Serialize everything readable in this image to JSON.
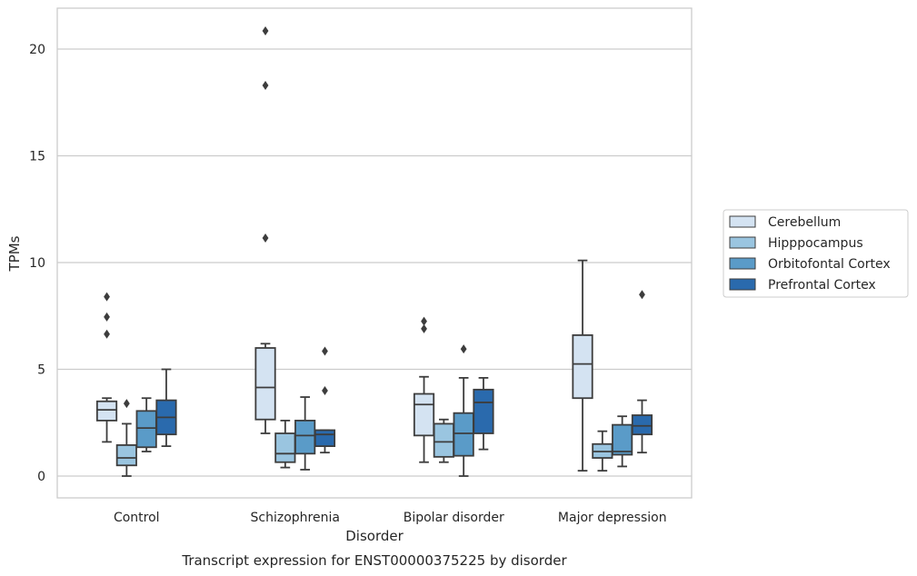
{
  "caption": "Transcript expression for ENST00000375225 by disorder",
  "chart_data": {
    "type": "boxplot",
    "title": "",
    "xlabel": "Disorder",
    "ylabel": "TPMs",
    "ylim": [
      -1,
      21.9
    ],
    "yticks": [
      0,
      5,
      10,
      15,
      20
    ],
    "grid": "horizontal",
    "legend_position": "right",
    "categories": [
      "Control",
      "Schizophrenia",
      "Bipolar disorder",
      "Major depression"
    ],
    "series": [
      {
        "name": "Cerebellum",
        "color": "#d4e3f2",
        "boxes": [
          {
            "whisker_low": 1.6,
            "q1": 2.6,
            "median": 3.1,
            "q3": 3.5,
            "whisker_high": 3.65,
            "outliers": [
              8.4,
              7.45,
              6.65
            ]
          },
          {
            "whisker_low": 2.0,
            "q1": 2.65,
            "median": 4.15,
            "q3": 6.0,
            "whisker_high": 6.2,
            "outliers": [
              20.85,
              18.3,
              11.15
            ]
          },
          {
            "whisker_low": 0.65,
            "q1": 1.9,
            "median": 3.35,
            "q3": 3.85,
            "whisker_high": 4.65,
            "outliers": [
              7.25,
              6.9
            ]
          },
          {
            "whisker_low": 0.25,
            "q1": 3.65,
            "median": 5.25,
            "q3": 6.6,
            "whisker_high": 10.1,
            "outliers": []
          }
        ]
      },
      {
        "name": "Hipppocampus",
        "color": "#9ac5e0",
        "boxes": [
          {
            "whisker_low": 0.0,
            "q1": 0.5,
            "median": 0.85,
            "q3": 1.45,
            "whisker_high": 2.45,
            "outliers": [
              3.4
            ]
          },
          {
            "whisker_low": 0.4,
            "q1": 0.65,
            "median": 1.05,
            "q3": 2.0,
            "whisker_high": 2.6,
            "outliers": []
          },
          {
            "whisker_low": 0.65,
            "q1": 0.9,
            "median": 1.6,
            "q3": 2.45,
            "whisker_high": 2.65,
            "outliers": []
          },
          {
            "whisker_low": 0.25,
            "q1": 0.85,
            "median": 1.15,
            "q3": 1.5,
            "whisker_high": 2.1,
            "outliers": []
          }
        ]
      },
      {
        "name": "Orbitofontal Cortex",
        "color": "#5a9bc8",
        "boxes": [
          {
            "whisker_low": 1.15,
            "q1": 1.35,
            "median": 2.25,
            "q3": 3.05,
            "whisker_high": 3.65,
            "outliers": []
          },
          {
            "whisker_low": 0.3,
            "q1": 1.05,
            "median": 1.9,
            "q3": 2.6,
            "whisker_high": 3.7,
            "outliers": []
          },
          {
            "whisker_low": 0.0,
            "q1": 0.95,
            "median": 2.0,
            "q3": 2.95,
            "whisker_high": 4.6,
            "outliers": [
              5.95
            ]
          },
          {
            "whisker_low": 0.45,
            "q1": 1.0,
            "median": 1.15,
            "q3": 2.4,
            "whisker_high": 2.8,
            "outliers": []
          }
        ]
      },
      {
        "name": "Prefrontal Cortex",
        "color": "#2a6aad",
        "boxes": [
          {
            "whisker_low": 1.4,
            "q1": 1.95,
            "median": 2.75,
            "q3": 3.55,
            "whisker_high": 5.0,
            "outliers": []
          },
          {
            "whisker_low": 1.1,
            "q1": 1.4,
            "median": 1.95,
            "q3": 2.15,
            "whisker_high": 2.15,
            "outliers": [
              5.85,
              4.0
            ]
          },
          {
            "whisker_low": 1.25,
            "q1": 2.0,
            "median": 3.45,
            "q3": 4.05,
            "whisker_high": 4.6,
            "outliers": []
          },
          {
            "whisker_low": 1.1,
            "q1": 1.95,
            "median": 2.35,
            "q3": 2.85,
            "whisker_high": 3.55,
            "outliers": [
              8.5
            ]
          }
        ]
      }
    ]
  }
}
